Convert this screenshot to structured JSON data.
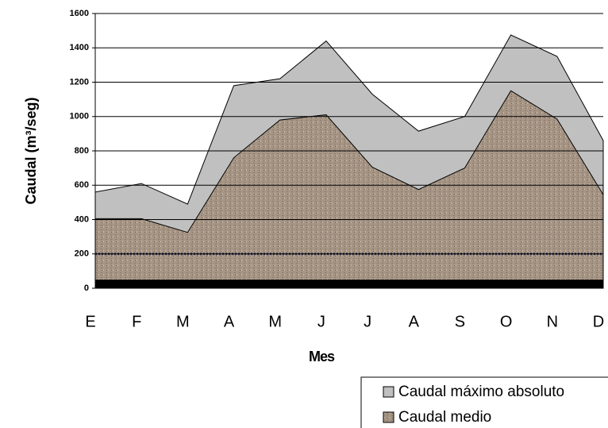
{
  "chart_data": {
    "type": "area",
    "x_label": "Mes",
    "y_label": "Caudal (m³/seg)",
    "categories": [
      "E",
      "F",
      "M",
      "A",
      "M",
      "J",
      "J",
      "A",
      "S",
      "O",
      "N",
      "D"
    ],
    "series": [
      {
        "name": "Caudal máximo absoluto",
        "color": "#c0c0c0",
        "values": [
          560,
          610,
          490,
          1180,
          1220,
          1440,
          1130,
          915,
          1000,
          1475,
          1350,
          860
        ]
      },
      {
        "name": "Caudal medio",
        "color": "#a69584",
        "values": [
          405,
          405,
          325,
          760,
          980,
          1010,
          705,
          575,
          700,
          1150,
          985,
          545
        ]
      }
    ],
    "ylim": [
      0,
      1600
    ],
    "yticks": [
      0,
      200,
      400,
      600,
      800,
      1000,
      1200,
      1400,
      1600
    ],
    "grid": true,
    "legend": "bottom-right"
  }
}
